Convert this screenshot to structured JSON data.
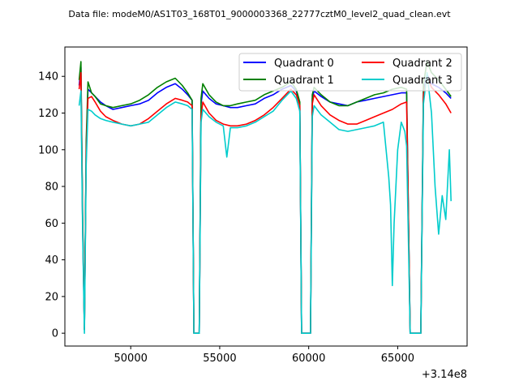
{
  "chart_data": {
    "type": "line",
    "title": "Data file: modeM0/AS1T03_168T01_9000003368_22777cztM0_level2_quad_clean.evt",
    "xlabel": "",
    "ylabel": "",
    "x_offset_label": "+3.14e8",
    "xlim": [
      46300,
      68900
    ],
    "ylim": [
      -7,
      156
    ],
    "xticks": [
      50000,
      55000,
      60000,
      65000
    ],
    "xtick_labels": [
      "50000",
      "55000",
      "60000",
      "65000"
    ],
    "yticks": [
      0,
      20,
      40,
      60,
      80,
      100,
      120,
      140
    ],
    "ytick_labels": [
      "0",
      "20",
      "40",
      "60",
      "80",
      "100",
      "120",
      "140"
    ],
    "grid": false,
    "legend_placement": "top-right",
    "series": [
      {
        "name": "Quadrant 0",
        "color": "#0000ff",
        "points": [
          [
            47100,
            135
          ],
          [
            47200,
            145
          ],
          [
            47300,
            60
          ],
          [
            47400,
            2
          ],
          [
            47500,
            100
          ],
          [
            47600,
            133
          ],
          [
            47800,
            131
          ],
          [
            48000,
            129
          ],
          [
            48300,
            126
          ],
          [
            48600,
            124
          ],
          [
            49000,
            122
          ],
          [
            49500,
            123
          ],
          [
            50000,
            124
          ],
          [
            50500,
            125
          ],
          [
            51000,
            127
          ],
          [
            51500,
            131
          ],
          [
            52000,
            134
          ],
          [
            52500,
            136
          ],
          [
            52900,
            133
          ],
          [
            53200,
            130
          ],
          [
            53450,
            127
          ],
          [
            53550,
            0
          ],
          [
            53850,
            0
          ],
          [
            53950,
            125
          ],
          [
            54050,
            132
          ],
          [
            54400,
            128
          ],
          [
            54800,
            125
          ],
          [
            55200,
            124
          ],
          [
            55600,
            123
          ],
          [
            56000,
            123
          ],
          [
            56500,
            124
          ],
          [
            57000,
            125
          ],
          [
            57500,
            128
          ],
          [
            58000,
            130
          ],
          [
            58500,
            133
          ],
          [
            59000,
            135
          ],
          [
            59300,
            132
          ],
          [
            59500,
            125
          ],
          [
            59600,
            0
          ],
          [
            60100,
            0
          ],
          [
            60200,
            128
          ],
          [
            60300,
            132
          ],
          [
            60700,
            129
          ],
          [
            61200,
            126
          ],
          [
            61700,
            125
          ],
          [
            62200,
            124
          ],
          [
            62700,
            126
          ],
          [
            63200,
            127
          ],
          [
            63700,
            128
          ],
          [
            64200,
            129
          ],
          [
            64700,
            130
          ],
          [
            65200,
            131
          ],
          [
            65500,
            131
          ],
          [
            65700,
            0
          ],
          [
            66300,
            0
          ],
          [
            66450,
            132
          ],
          [
            66650,
            141
          ],
          [
            66900,
            136
          ],
          [
            67300,
            134
          ],
          [
            67700,
            131
          ],
          [
            68000,
            128
          ]
        ]
      },
      {
        "name": "Quadrant 1",
        "color": "#008000",
        "points": [
          [
            47100,
            138
          ],
          [
            47200,
            148
          ],
          [
            47300,
            65
          ],
          [
            47400,
            2
          ],
          [
            47500,
            105
          ],
          [
            47600,
            137
          ],
          [
            47800,
            131
          ],
          [
            48000,
            129
          ],
          [
            48300,
            125
          ],
          [
            48600,
            124
          ],
          [
            49000,
            123
          ],
          [
            49500,
            124
          ],
          [
            50000,
            125
          ],
          [
            50500,
            127
          ],
          [
            51000,
            130
          ],
          [
            51500,
            134
          ],
          [
            52000,
            137
          ],
          [
            52500,
            139
          ],
          [
            52900,
            135
          ],
          [
            53200,
            131
          ],
          [
            53450,
            127
          ],
          [
            53550,
            0
          ],
          [
            53850,
            0
          ],
          [
            53950,
            128
          ],
          [
            54050,
            136
          ],
          [
            54400,
            130
          ],
          [
            54800,
            126
          ],
          [
            55200,
            124
          ],
          [
            55600,
            124
          ],
          [
            56000,
            125
          ],
          [
            56500,
            126
          ],
          [
            57000,
            127
          ],
          [
            57500,
            130
          ],
          [
            58000,
            132
          ],
          [
            58500,
            134
          ],
          [
            59000,
            137
          ],
          [
            59300,
            133
          ],
          [
            59500,
            126
          ],
          [
            59600,
            0
          ],
          [
            60100,
            0
          ],
          [
            60200,
            130
          ],
          [
            60300,
            134
          ],
          [
            60700,
            130
          ],
          [
            61200,
            126
          ],
          [
            61700,
            124
          ],
          [
            62200,
            124
          ],
          [
            62700,
            126
          ],
          [
            63200,
            128
          ],
          [
            63700,
            130
          ],
          [
            64200,
            131
          ],
          [
            64700,
            133
          ],
          [
            65200,
            134
          ],
          [
            65500,
            133
          ],
          [
            65700,
            0
          ],
          [
            66300,
            0
          ],
          [
            66450,
            136
          ],
          [
            66650,
            148
          ],
          [
            66900,
            142
          ],
          [
            67300,
            138
          ],
          [
            67700,
            133
          ],
          [
            68000,
            129
          ]
        ]
      },
      {
        "name": "Quadrant 2",
        "color": "#ff0000",
        "points": [
          [
            47100,
            133
          ],
          [
            47200,
            142
          ],
          [
            47300,
            60
          ],
          [
            47400,
            2
          ],
          [
            47500,
            98
          ],
          [
            47600,
            128
          ],
          [
            47800,
            129
          ],
          [
            48000,
            126
          ],
          [
            48300,
            121
          ],
          [
            48600,
            118
          ],
          [
            49000,
            116
          ],
          [
            49500,
            114
          ],
          [
            50000,
            113
          ],
          [
            50500,
            114
          ],
          [
            51000,
            117
          ],
          [
            51500,
            121
          ],
          [
            52000,
            125
          ],
          [
            52500,
            128
          ],
          [
            52900,
            127
          ],
          [
            53200,
            126
          ],
          [
            53450,
            124
          ],
          [
            53550,
            0
          ],
          [
            53850,
            0
          ],
          [
            53950,
            118
          ],
          [
            54050,
            126
          ],
          [
            54400,
            120
          ],
          [
            54800,
            116
          ],
          [
            55200,
            114
          ],
          [
            55600,
            113
          ],
          [
            56000,
            113
          ],
          [
            56500,
            114
          ],
          [
            57000,
            116
          ],
          [
            57500,
            119
          ],
          [
            58000,
            123
          ],
          [
            58500,
            128
          ],
          [
            59000,
            133
          ],
          [
            59300,
            130
          ],
          [
            59500,
            124
          ],
          [
            59600,
            0
          ],
          [
            60100,
            0
          ],
          [
            60200,
            125
          ],
          [
            60300,
            130
          ],
          [
            60700,
            124
          ],
          [
            61200,
            119
          ],
          [
            61700,
            116
          ],
          [
            62200,
            114
          ],
          [
            62700,
            114
          ],
          [
            63200,
            116
          ],
          [
            63700,
            118
          ],
          [
            64200,
            120
          ],
          [
            64700,
            122
          ],
          [
            65200,
            125
          ],
          [
            65500,
            126
          ],
          [
            65700,
            0
          ],
          [
            66300,
            0
          ],
          [
            66450,
            130
          ],
          [
            66650,
            140
          ],
          [
            66900,
            134
          ],
          [
            67300,
            130
          ],
          [
            67700,
            125
          ],
          [
            68000,
            120
          ]
        ]
      },
      {
        "name": "Quadrant 3",
        "color": "#00cccc",
        "points": [
          [
            47100,
            124
          ],
          [
            47200,
            132
          ],
          [
            47300,
            55
          ],
          [
            47400,
            0
          ],
          [
            47500,
            92
          ],
          [
            47600,
            122
          ],
          [
            47800,
            121
          ],
          [
            48000,
            119
          ],
          [
            48300,
            117
          ],
          [
            48600,
            116
          ],
          [
            49000,
            115
          ],
          [
            49500,
            114
          ],
          [
            50000,
            113
          ],
          [
            50500,
            114
          ],
          [
            51000,
            115
          ],
          [
            51500,
            119
          ],
          [
            52000,
            123
          ],
          [
            52500,
            126
          ],
          [
            52900,
            125
          ],
          [
            53200,
            124
          ],
          [
            53450,
            122
          ],
          [
            53550,
            0
          ],
          [
            53850,
            0
          ],
          [
            53950,
            115
          ],
          [
            54050,
            122
          ],
          [
            54400,
            118
          ],
          [
            54800,
            115
          ],
          [
            55200,
            113
          ],
          [
            55400,
            96
          ],
          [
            55600,
            112
          ],
          [
            56000,
            112
          ],
          [
            56500,
            113
          ],
          [
            57000,
            115
          ],
          [
            57500,
            118
          ],
          [
            58000,
            121
          ],
          [
            58500,
            127
          ],
          [
            59000,
            132
          ],
          [
            59300,
            128
          ],
          [
            59500,
            121
          ],
          [
            59600,
            0
          ],
          [
            60100,
            0
          ],
          [
            60200,
            118
          ],
          [
            60300,
            124
          ],
          [
            60700,
            119
          ],
          [
            61200,
            115
          ],
          [
            61700,
            111
          ],
          [
            62200,
            110
          ],
          [
            62700,
            111
          ],
          [
            63200,
            112
          ],
          [
            63700,
            113
          ],
          [
            64200,
            115
          ],
          [
            64500,
            85
          ],
          [
            64600,
            70
          ],
          [
            64700,
            26
          ],
          [
            64800,
            60
          ],
          [
            65000,
            100
          ],
          [
            65200,
            115
          ],
          [
            65400,
            110
          ],
          [
            65500,
            102
          ],
          [
            65700,
            0
          ],
          [
            66300,
            0
          ],
          [
            66450,
            125
          ],
          [
            66650,
            142
          ],
          [
            66900,
            120
          ],
          [
            67100,
            80
          ],
          [
            67300,
            54
          ],
          [
            67500,
            75
          ],
          [
            67700,
            62
          ],
          [
            67900,
            100
          ],
          [
            68000,
            72
          ]
        ]
      }
    ]
  }
}
